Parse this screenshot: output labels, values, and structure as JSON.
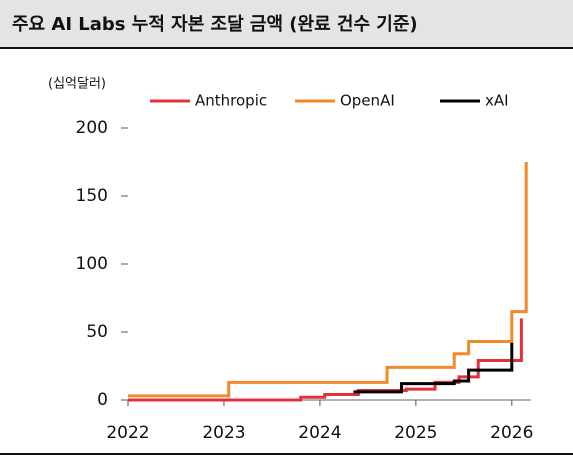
{
  "chart_data": {
    "type": "step",
    "title": "주요 AI Labs 누적 자본 조달 금액 (완료 건수 기준)",
    "y_label": "(십억달러)",
    "xlim": [
      2022,
      2026.2
    ],
    "xticks": [
      2022,
      2023,
      2024,
      2025,
      2026
    ],
    "ylim": [
      0,
      200
    ],
    "yticks": [
      0,
      50,
      100,
      150,
      200
    ],
    "series": [
      {
        "name": "Anthropic",
        "color": "#e3303b",
        "x": [
          2022,
          2023.8,
          2024.05,
          2024.4,
          2024.9,
          2025.2,
          2025.45,
          2025.65,
          2026.1
        ],
        "values": [
          0,
          2,
          4,
          7,
          8,
          13,
          17,
          29,
          60
        ]
      },
      {
        "name": "OpenAI",
        "color": "#f28a2a",
        "x": [
          2022,
          2023.05,
          2024.7,
          2025.4,
          2025.55,
          2026.0,
          2026.15
        ],
        "values": [
          3,
          13,
          24,
          34,
          43,
          65,
          175
        ]
      },
      {
        "name": "xAI",
        "color": "#000000",
        "x": [
          2024.35,
          2024.85,
          2025.4,
          2025.55,
          2026.0
        ],
        "values": [
          6,
          12,
          14,
          22,
          42
        ]
      }
    ]
  }
}
